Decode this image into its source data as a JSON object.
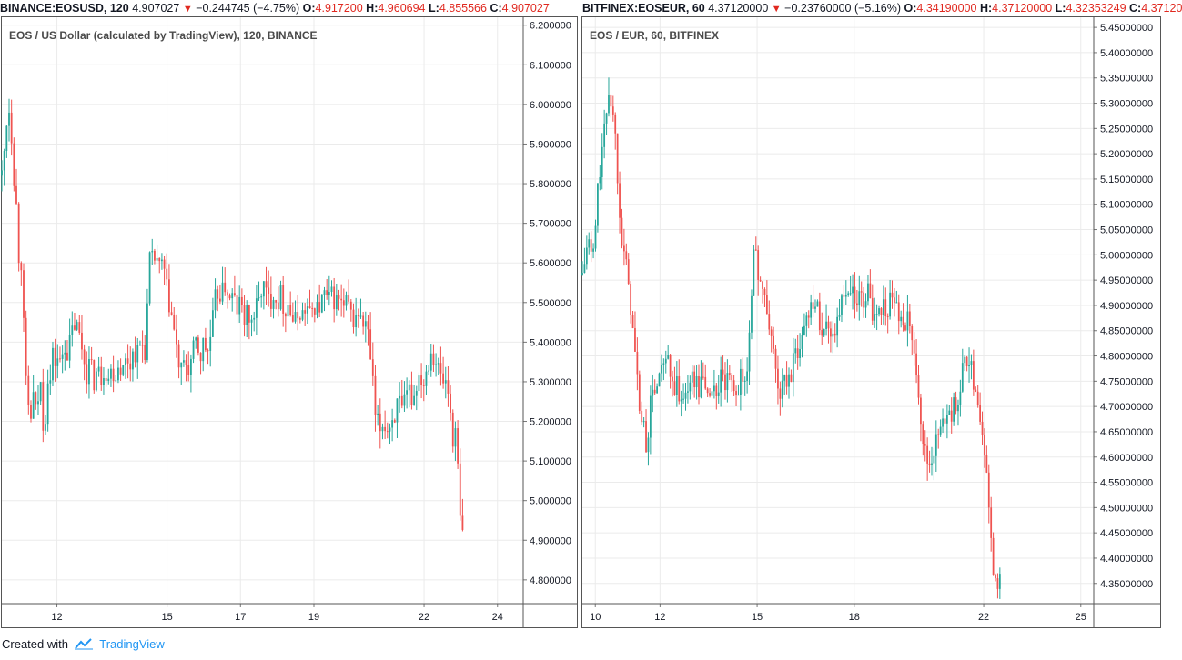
{
  "colors": {
    "up": "#26a69a",
    "down": "#ef5350",
    "grid": "#ebebeb",
    "border": "#555555",
    "accent": "#2196f3"
  },
  "left_header": {
    "symbol": "BINANCE:EOSUSD, 120",
    "last": "4.907027",
    "change": "−0.244745 (−4.75%)",
    "o_label": "O:",
    "o_value": "4.917200",
    "h_label": "H:",
    "h_value": "4.960694",
    "l_label": "L:",
    "l_value": "4.855566",
    "c_label": "C:",
    "c_value": "4.907027"
  },
  "right_header": {
    "symbol": "BITFINEX:EOSEUR, 60",
    "last": "4.37120000",
    "change": "−0.23760000 (−5.16%)",
    "o_label": "O:",
    "o_value": "4.34190000",
    "h_label": "H:",
    "h_value": "4.37120000",
    "l_label": "L:",
    "l_value": "4.32353249",
    "c_label": "C:",
    "c_value": "4.37120"
  },
  "footer": {
    "created": "Created with",
    "brand": "TradingView"
  },
  "chart_data": [
    {
      "type": "candlestick",
      "title": "EOS / US Dollar (calculated by TradingView), 120, BINANCE",
      "y_ticks": [
        "6.200000",
        "6.100000",
        "6.000000",
        "5.900000",
        "5.800000",
        "5.700000",
        "5.600000",
        "5.500000",
        "5.400000",
        "5.300000",
        "5.200000",
        "5.100000",
        "5.000000",
        "4.900000",
        "4.800000"
      ],
      "ylim": [
        4.74,
        6.22
      ],
      "x_ticks": [
        "12",
        "15",
        "17",
        "19",
        "22",
        "24"
      ],
      "x_tick_pos": [
        12,
        15,
        17,
        19,
        22,
        24
      ],
      "xlim": [
        10.5,
        24.7
      ],
      "grid": true,
      "path": [
        [
          10.5,
          5.82
        ],
        [
          10.55,
          5.86
        ],
        [
          10.62,
          5.95
        ],
        [
          10.68,
          6.0
        ],
        [
          10.74,
          5.97
        ],
        [
          10.8,
          5.86
        ],
        [
          10.86,
          5.78
        ],
        [
          10.92,
          5.72
        ],
        [
          10.98,
          5.58
        ],
        [
          11.02,
          5.62
        ],
        [
          11.06,
          5.55
        ],
        [
          11.1,
          5.42
        ],
        [
          11.15,
          5.3
        ],
        [
          11.2,
          5.25
        ],
        [
          11.28,
          5.2
        ],
        [
          11.35,
          5.27
        ],
        [
          11.42,
          5.22
        ],
        [
          11.48,
          5.25
        ],
        [
          11.55,
          5.3
        ],
        [
          11.62,
          5.2
        ],
        [
          11.7,
          5.22
        ],
        [
          11.75,
          5.32
        ],
        [
          11.82,
          5.3
        ],
        [
          11.9,
          5.38
        ],
        [
          11.95,
          5.35
        ],
        [
          12.02,
          5.36
        ],
        [
          12.1,
          5.34
        ],
        [
          12.2,
          5.4
        ],
        [
          12.3,
          5.37
        ],
        [
          12.4,
          5.42
        ],
        [
          12.5,
          5.45
        ],
        [
          12.6,
          5.42
        ],
        [
          12.7,
          5.38
        ],
        [
          12.8,
          5.32
        ],
        [
          12.9,
          5.35
        ],
        [
          13.0,
          5.3
        ],
        [
          13.1,
          5.33
        ],
        [
          13.2,
          5.31
        ],
        [
          13.3,
          5.34
        ],
        [
          13.4,
          5.31
        ],
        [
          13.5,
          5.33
        ],
        [
          13.6,
          5.32
        ],
        [
          13.7,
          5.35
        ],
        [
          13.8,
          5.33
        ],
        [
          13.9,
          5.36
        ],
        [
          14.0,
          5.35
        ],
        [
          14.1,
          5.38
        ],
        [
          14.2,
          5.37
        ],
        [
          14.3,
          5.4
        ],
        [
          14.4,
          5.38
        ],
        [
          14.45,
          5.45
        ],
        [
          14.5,
          5.58
        ],
        [
          14.55,
          5.62
        ],
        [
          14.6,
          5.6
        ],
        [
          14.7,
          5.62
        ],
        [
          14.8,
          5.58
        ],
        [
          14.9,
          5.6
        ],
        [
          14.95,
          5.55
        ],
        [
          15.05,
          5.5
        ],
        [
          15.1,
          5.48
        ],
        [
          15.2,
          5.42
        ],
        [
          15.3,
          5.35
        ],
        [
          15.4,
          5.32
        ],
        [
          15.5,
          5.35
        ],
        [
          15.6,
          5.33
        ],
        [
          15.7,
          5.37
        ],
        [
          15.8,
          5.4
        ],
        [
          15.9,
          5.36
        ],
        [
          16.0,
          5.4
        ],
        [
          16.1,
          5.37
        ],
        [
          16.2,
          5.42
        ],
        [
          16.3,
          5.5
        ],
        [
          16.4,
          5.53
        ],
        [
          16.5,
          5.52
        ],
        [
          16.6,
          5.55
        ],
        [
          16.7,
          5.5
        ],
        [
          16.8,
          5.52
        ],
        [
          16.9,
          5.48
        ],
        [
          17.0,
          5.5
        ],
        [
          17.1,
          5.46
        ],
        [
          17.2,
          5.47
        ],
        [
          17.3,
          5.45
        ],
        [
          17.4,
          5.48
        ],
        [
          17.5,
          5.5
        ],
        [
          17.6,
          5.55
        ],
        [
          17.7,
          5.52
        ],
        [
          17.8,
          5.5
        ],
        [
          17.9,
          5.53
        ],
        [
          18.0,
          5.5
        ],
        [
          18.1,
          5.52
        ],
        [
          18.2,
          5.48
        ],
        [
          18.3,
          5.5
        ],
        [
          18.4,
          5.46
        ],
        [
          18.5,
          5.45
        ],
        [
          18.6,
          5.48
        ],
        [
          18.7,
          5.47
        ],
        [
          18.8,
          5.49
        ],
        [
          18.9,
          5.46
        ],
        [
          19.0,
          5.5
        ],
        [
          19.1,
          5.48
        ],
        [
          19.2,
          5.5
        ],
        [
          19.3,
          5.52
        ],
        [
          19.4,
          5.5
        ],
        [
          19.5,
          5.52
        ],
        [
          19.6,
          5.5
        ],
        [
          19.7,
          5.51
        ],
        [
          19.8,
          5.48
        ],
        [
          19.9,
          5.5
        ],
        [
          20.0,
          5.47
        ],
        [
          20.1,
          5.45
        ],
        [
          20.2,
          5.48
        ],
        [
          20.3,
          5.44
        ],
        [
          20.4,
          5.45
        ],
        [
          20.5,
          5.4
        ],
        [
          20.6,
          5.3
        ],
        [
          20.65,
          5.22
        ],
        [
          20.7,
          5.2
        ],
        [
          20.8,
          5.18
        ],
        [
          20.9,
          5.2
        ],
        [
          21.0,
          5.18
        ],
        [
          21.1,
          5.2
        ],
        [
          21.2,
          5.22
        ],
        [
          21.3,
          5.25
        ],
        [
          21.4,
          5.22
        ],
        [
          21.5,
          5.25
        ],
        [
          21.6,
          5.28
        ],
        [
          21.7,
          5.25
        ],
        [
          21.8,
          5.3
        ],
        [
          21.9,
          5.32
        ],
        [
          22.0,
          5.3
        ],
        [
          22.1,
          5.35
        ],
        [
          22.2,
          5.38
        ],
        [
          22.3,
          5.36
        ],
        [
          22.4,
          5.33
        ],
        [
          22.5,
          5.3
        ],
        [
          22.6,
          5.3
        ],
        [
          22.7,
          5.25
        ],
        [
          22.75,
          5.18
        ],
        [
          22.8,
          5.15
        ],
        [
          22.85,
          5.17
        ],
        [
          22.9,
          5.12
        ],
        [
          22.95,
          5.0
        ],
        [
          23.0,
          4.93
        ],
        [
          23.05,
          4.91
        ]
      ]
    },
    {
      "type": "candlestick",
      "title": "EOS / EUR, 60, BITFINEX",
      "y_ticks": [
        "5.45000000",
        "5.40000000",
        "5.35000000",
        "5.30000000",
        "5.25000000",
        "5.20000000",
        "5.15000000",
        "5.10000000",
        "5.05000000",
        "5.00000000",
        "4.95000000",
        "4.90000000",
        "4.85000000",
        "4.80000000",
        "4.75000000",
        "4.70000000",
        "4.65000000",
        "4.60000000",
        "4.55000000",
        "4.50000000",
        "4.45000000",
        "4.40000000",
        "4.35000000"
      ],
      "ylim": [
        4.31,
        5.47
      ],
      "x_ticks": [
        "10",
        "12",
        "15",
        "18",
        "22",
        "25"
      ],
      "x_tick_pos": [
        10,
        12,
        15,
        18,
        22,
        25
      ],
      "xlim": [
        9.6,
        25.4
      ],
      "grid": true,
      "path": [
        [
          9.6,
          4.96
        ],
        [
          9.7,
          5.0
        ],
        [
          9.8,
          5.03
        ],
        [
          9.9,
          4.98
        ],
        [
          10.0,
          5.05
        ],
        [
          10.1,
          5.15
        ],
        [
          10.2,
          5.2
        ],
        [
          10.3,
          5.25
        ],
        [
          10.4,
          5.33
        ],
        [
          10.5,
          5.3
        ],
        [
          10.6,
          5.25
        ],
        [
          10.7,
          5.15
        ],
        [
          10.8,
          5.05
        ],
        [
          10.9,
          5.0
        ],
        [
          11.0,
          4.95
        ],
        [
          11.1,
          4.9
        ],
        [
          11.2,
          4.82
        ],
        [
          11.3,
          4.75
        ],
        [
          11.4,
          4.68
        ],
        [
          11.5,
          4.65
        ],
        [
          11.6,
          4.62
        ],
        [
          11.7,
          4.7
        ],
        [
          11.8,
          4.75
        ],
        [
          11.9,
          4.72
        ],
        [
          12.0,
          4.78
        ],
        [
          12.1,
          4.76
        ],
        [
          12.2,
          4.8
        ],
        [
          12.3,
          4.76
        ],
        [
          12.4,
          4.73
        ],
        [
          12.5,
          4.75
        ],
        [
          12.6,
          4.7
        ],
        [
          12.7,
          4.72
        ],
        [
          12.8,
          4.75
        ],
        [
          12.9,
          4.72
        ],
        [
          13.0,
          4.77
        ],
        [
          13.1,
          4.75
        ],
        [
          13.2,
          4.73
        ],
        [
          13.3,
          4.76
        ],
        [
          13.4,
          4.74
        ],
        [
          13.5,
          4.72
        ],
        [
          13.6,
          4.74
        ],
        [
          13.7,
          4.72
        ],
        [
          13.8,
          4.74
        ],
        [
          13.9,
          4.76
        ],
        [
          14.0,
          4.74
        ],
        [
          14.1,
          4.75
        ],
        [
          14.2,
          4.73
        ],
        [
          14.3,
          4.75
        ],
        [
          14.4,
          4.73
        ],
        [
          14.5,
          4.76
        ],
        [
          14.6,
          4.74
        ],
        [
          14.7,
          4.78
        ],
        [
          14.8,
          4.9
        ],
        [
          14.85,
          4.97
        ],
        [
          14.9,
          5.0
        ],
        [
          15.0,
          4.98
        ],
        [
          15.1,
          4.95
        ],
        [
          15.2,
          4.92
        ],
        [
          15.3,
          4.88
        ],
        [
          15.4,
          4.85
        ],
        [
          15.5,
          4.82
        ],
        [
          15.6,
          4.75
        ],
        [
          15.7,
          4.72
        ],
        [
          15.8,
          4.75
        ],
        [
          15.9,
          4.74
        ],
        [
          16.0,
          4.76
        ],
        [
          16.1,
          4.78
        ],
        [
          16.2,
          4.8
        ],
        [
          16.3,
          4.82
        ],
        [
          16.4,
          4.84
        ],
        [
          16.5,
          4.87
        ],
        [
          16.6,
          4.9
        ],
        [
          16.7,
          4.92
        ],
        [
          16.8,
          4.9
        ],
        [
          16.9,
          4.88
        ],
        [
          17.0,
          4.86
        ],
        [
          17.1,
          4.85
        ],
        [
          17.2,
          4.87
        ],
        [
          17.3,
          4.84
        ],
        [
          17.4,
          4.86
        ],
        [
          17.5,
          4.88
        ],
        [
          17.6,
          4.9
        ],
        [
          17.7,
          4.92
        ],
        [
          17.8,
          4.9
        ],
        [
          17.9,
          4.93
        ],
        [
          18.0,
          4.91
        ],
        [
          18.1,
          4.89
        ],
        [
          18.2,
          4.92
        ],
        [
          18.3,
          4.9
        ],
        [
          18.4,
          4.93
        ],
        [
          18.5,
          4.9
        ],
        [
          18.6,
          4.88
        ],
        [
          18.7,
          4.9
        ],
        [
          18.8,
          4.88
        ],
        [
          18.9,
          4.9
        ],
        [
          19.0,
          4.89
        ],
        [
          19.1,
          4.91
        ],
        [
          19.2,
          4.89
        ],
        [
          19.3,
          4.9
        ],
        [
          19.4,
          4.88
        ],
        [
          19.5,
          4.86
        ],
        [
          19.6,
          4.87
        ],
        [
          19.7,
          4.86
        ],
        [
          19.8,
          4.85
        ],
        [
          19.9,
          4.8
        ],
        [
          20.0,
          4.72
        ],
        [
          20.1,
          4.65
        ],
        [
          20.2,
          4.6
        ],
        [
          20.3,
          4.58
        ],
        [
          20.4,
          4.6
        ],
        [
          20.5,
          4.62
        ],
        [
          20.6,
          4.64
        ],
        [
          20.7,
          4.65
        ],
        [
          20.8,
          4.68
        ],
        [
          20.9,
          4.7
        ],
        [
          21.0,
          4.68
        ],
        [
          21.1,
          4.7
        ],
        [
          21.2,
          4.72
        ],
        [
          21.3,
          4.75
        ],
        [
          21.4,
          4.78
        ],
        [
          21.5,
          4.8
        ],
        [
          21.6,
          4.78
        ],
        [
          21.7,
          4.75
        ],
        [
          21.8,
          4.72
        ],
        [
          21.9,
          4.68
        ],
        [
          22.0,
          4.62
        ],
        [
          22.1,
          4.55
        ],
        [
          22.2,
          4.45
        ],
        [
          22.3,
          4.38
        ],
        [
          22.4,
          4.35
        ],
        [
          22.45,
          4.36
        ],
        [
          22.5,
          4.37
        ]
      ]
    }
  ]
}
